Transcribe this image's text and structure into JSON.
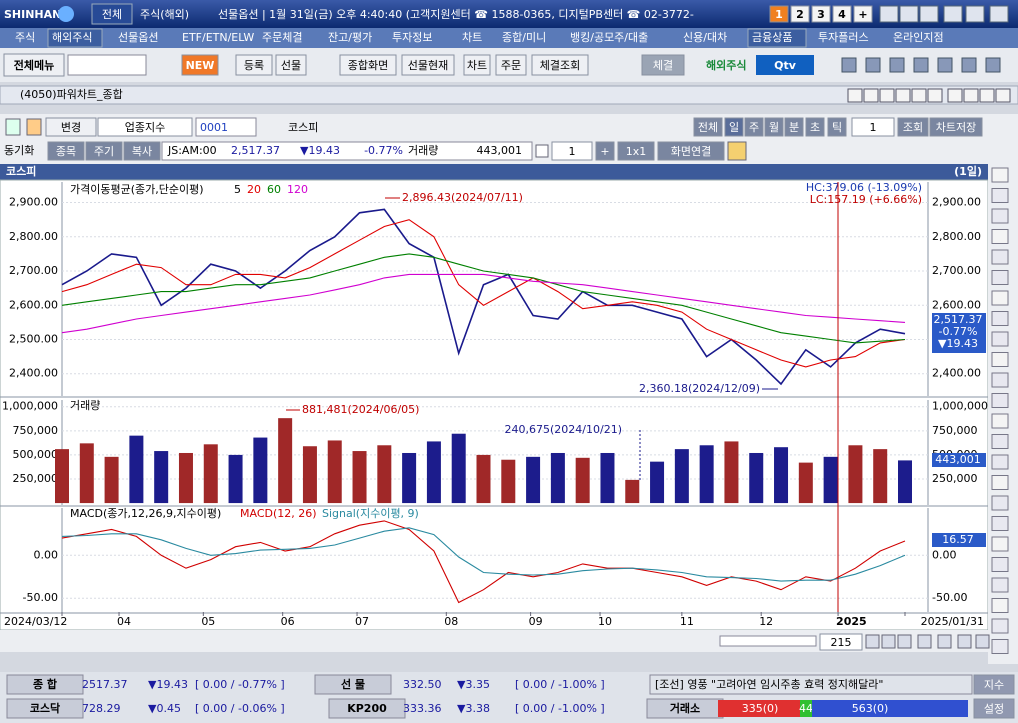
{
  "title_bar": {
    "logo": "SHINHAN",
    "tab": "전체",
    "market": "주식(해외)",
    "status": "선물옵션 | 1월 31일(금) 오후 4:40:40 (고객지원센터 ☎ 1588-0365, 디지털PB센터 ☎ 02-3772-",
    "screens": [
      "1",
      "2",
      "3",
      "4",
      "+"
    ]
  },
  "menu": [
    "주식",
    "해외주식",
    "선물옵션",
    "ETF/ETN/ELW",
    "주문체결",
    "잔고/평가",
    "투자정보",
    "차트",
    "종합/미니",
    "뱅킹/공모주/대출",
    "신용/대차",
    "금융상품",
    "투자플러스",
    "온라인지점"
  ],
  "toolbar": {
    "all_menu": "전체메뉴",
    "new": "NEW",
    "buttons": [
      "등록",
      "선물",
      "종합화면",
      "선물현재",
      "차트",
      "주문",
      "체결조회"
    ],
    "exec": "체결",
    "overseas": "해외주식",
    "tv": "Qtv"
  },
  "window_title": "(4050)파워차트_종합",
  "controls": {
    "change": "변경",
    "index_type": "업종지수",
    "code": "0001",
    "name": "코스피",
    "periods": [
      "전체",
      "일",
      "주",
      "월",
      "분",
      "초",
      "틱"
    ],
    "count": "1",
    "query": "조회",
    "save": "차트저장"
  },
  "quote_row": {
    "sync": "동기화",
    "tabs": [
      "종목",
      "주기",
      "복사"
    ],
    "time": "JS:AM:00",
    "price": "2,517.37",
    "change": "▼19.43",
    "rate": "-0.77%",
    "volume_label": "거래량",
    "volume": "443,001",
    "count": "1",
    "plus": "+",
    "layout": "1x1",
    "link": "화면연결"
  },
  "chart": {
    "name": "코스피",
    "period": "(1일)",
    "price": {
      "type": "line",
      "legend": "가격이동평균(종가,단순이평)",
      "legend_periods": [
        {
          "label": "5",
          "color": "#000000"
        },
        {
          "label": "20",
          "color": "#e00000"
        },
        {
          "label": "60",
          "color": "#008000"
        },
        {
          "label": "120",
          "color": "#d000d0"
        }
      ],
      "ylim": [
        2335,
        2960
      ],
      "yticks": [
        {
          "value": 2900,
          "label": "2,900.00"
        },
        {
          "value": 2800,
          "label": "2,800.00"
        },
        {
          "value": 2700,
          "label": "2,700.00"
        },
        {
          "value": 2600,
          "label": "2,600.00"
        },
        {
          "value": 2500,
          "label": "2,500.00"
        },
        {
          "value": 2400,
          "label": "2,400.00"
        }
      ],
      "series": [
        {
          "color": "#1a1a8c",
          "values": [
            2660,
            2700,
            2750,
            2740,
            2600,
            2650,
            2720,
            2700,
            2650,
            2700,
            2760,
            2800,
            2870,
            2880,
            2780,
            2740,
            2460,
            2660,
            2690,
            2570,
            2560,
            2640,
            2600,
            2600,
            2580,
            2560,
            2450,
            2500,
            2440,
            2370,
            2470,
            2420,
            2490,
            2530,
            2517
          ]
        },
        {
          "color": "#e00000",
          "values": [
            2640,
            2660,
            2690,
            2720,
            2710,
            2660,
            2660,
            2690,
            2690,
            2680,
            2710,
            2750,
            2790,
            2830,
            2850,
            2800,
            2660,
            2600,
            2640,
            2680,
            2640,
            2590,
            2600,
            2610,
            2600,
            2580,
            2530,
            2500,
            2470,
            2440,
            2420,
            2440,
            2450,
            2490,
            2500
          ]
        },
        {
          "color": "#008000",
          "values": [
            2600,
            2610,
            2620,
            2630,
            2640,
            2640,
            2650,
            2660,
            2660,
            2670,
            2680,
            2700,
            2720,
            2740,
            2750,
            2740,
            2720,
            2700,
            2690,
            2680,
            2660,
            2640,
            2630,
            2620,
            2610,
            2600,
            2580,
            2560,
            2540,
            2520,
            2510,
            2500,
            2490,
            2495,
            2500
          ]
        },
        {
          "color": "#d000d0",
          "values": [
            2520,
            2530,
            2545,
            2560,
            2570,
            2580,
            2590,
            2600,
            2610,
            2620,
            2630,
            2645,
            2660,
            2680,
            2690,
            2690,
            2690,
            2690,
            2680,
            2670,
            2665,
            2660,
            2650,
            2640,
            2630,
            2620,
            2610,
            2600,
            2590,
            2580,
            2570,
            2565,
            2560,
            2555,
            2550
          ]
        }
      ],
      "annotations": {
        "high": "2,896.43(2024/07/11)",
        "low": "2,360.18(2024/12/09)",
        "hc": "HC:379.06 (-13.09%)",
        "lc": "LC:157.19 (+6.66%)"
      },
      "last": {
        "price": "2,517.37",
        "rate": "-0.77%",
        "change": "▼19.43"
      }
    },
    "volume": {
      "type": "bar",
      "label": "거래량",
      "ylim": [
        -20000,
        1070000
      ],
      "yticks": [
        {
          "value": 1000000,
          "label": "1,000,000"
        },
        {
          "value": 750000,
          "label": "750,000"
        },
        {
          "value": 500000,
          "label": "500,000"
        },
        {
          "value": 250000,
          "label": "250,000"
        }
      ],
      "values": [
        560000,
        620000,
        480000,
        700000,
        540000,
        520000,
        610000,
        500000,
        680000,
        881481,
        590000,
        650000,
        540000,
        600000,
        520000,
        640000,
        720000,
        500000,
        450000,
        480000,
        520000,
        470000,
        520000,
        240675,
        430000,
        560000,
        600000,
        640000,
        520000,
        580000,
        420000,
        480000,
        600000,
        560000,
        443001
      ],
      "up_color": "#a02828",
      "down_color": "#1c1c8c",
      "annotations": {
        "high": "881,481(2024/06/05)",
        "low": "240,675(2024/10/21)"
      },
      "last": "443,001"
    },
    "macd": {
      "type": "line",
      "label": "MACD(종가,12,26,9,지수이평)",
      "macd_label": "MACD(12, 26)",
      "signal_label": "Signal(지수이평, 9)",
      "ylim": [
        -66,
        55
      ],
      "yticks": [
        {
          "value": 0,
          "label": "0.00"
        },
        {
          "value": -50,
          "label": "-50.00"
        }
      ],
      "series": [
        {
          "color": "#d00000",
          "values": [
            20,
            25,
            30,
            22,
            0,
            -15,
            -5,
            10,
            15,
            5,
            10,
            25,
            35,
            40,
            30,
            5,
            -55,
            -40,
            -20,
            -25,
            -20,
            -10,
            -15,
            -15,
            -20,
            -25,
            -35,
            -25,
            -30,
            -40,
            -25,
            -30,
            -15,
            5,
            16.57
          ]
        },
        {
          "color": "#2a8aa0",
          "values": [
            22,
            23,
            25,
            25,
            18,
            8,
            0,
            2,
            6,
            7,
            8,
            12,
            20,
            28,
            32,
            24,
            -2,
            -20,
            -22,
            -23,
            -22,
            -18,
            -16,
            -15,
            -17,
            -20,
            -25,
            -26,
            -27,
            -30,
            -29,
            -29,
            -22,
            -12,
            0
          ]
        }
      ],
      "last": "16.57"
    },
    "xticks": [
      {
        "value": 0,
        "label": "2024/03/12"
      },
      {
        "value": 2.3,
        "label": "04"
      },
      {
        "value": 5.7,
        "label": "05"
      },
      {
        "value": 8.9,
        "label": "06"
      },
      {
        "value": 11.9,
        "label": "07"
      },
      {
        "value": 15.5,
        "label": "08"
      },
      {
        "value": 18.9,
        "label": "09"
      },
      {
        "value": 21.7,
        "label": "10"
      },
      {
        "value": 25,
        "label": "11"
      },
      {
        "value": 28.2,
        "label": "12"
      },
      {
        "value": 31.3,
        "label": "2025"
      },
      {
        "value": 34,
        "label": "2025/01/31"
      }
    ],
    "scroll_count": "215"
  },
  "status_bar": {
    "row1": [
      "종 합",
      "2517.37",
      "▼19.43",
      "[ 0.00  / -0.77% ]",
      "선 물",
      "332.50",
      "▼3.35",
      "[ 0.00  / -1.00% ]",
      "[조선] 영풍 \"고려아연 임시주총 효력 정지해달라\"",
      "지수"
    ],
    "row2": [
      "코스닥",
      "728.29",
      "▼0.45",
      "[ 0.00  / -0.06% ]",
      "KP200",
      "333.36",
      "▼3.38",
      "[ 0.00  / -1.00% ]",
      "거래소",
      "335(0)",
      "44",
      "563(0)",
      "설정"
    ]
  }
}
